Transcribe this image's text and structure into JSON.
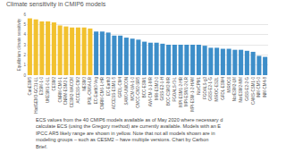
{
  "chart_data": {
    "type": "bar",
    "title": "Climate sensitivity in CMIP6 models",
    "y_label": "Equilibrium climate sensitivity",
    "categories": [
      "CanESM5",
      "HadGEM3-GC31-LL",
      "E3SM-1-0",
      "UKESM1-0-LL",
      "CESM2",
      "CNRM-CM6-1",
      "CNRM-ESM2-1",
      "CESM2-WACCM",
      "ACCESS-CM2",
      "NESM3",
      "IPSL-CM6A-LR",
      "EC-Earth3-Veg",
      "CNRM-CM6-1-HR",
      "EC-Earth3",
      "ACCESS-ESM1-5",
      "GFDL-CM4",
      "SAM0-UNICON",
      "MCM-UA-1-0",
      "CMCC-CM2-SR5",
      "BCC-ESM1",
      "AWI-CM-1-1-MR",
      "MRI-ESM2-0",
      "GISS-E2-1-H",
      "BCC-CSM2-MR",
      "FGOALS-f3-L",
      "MPI-ESM1-2-HR",
      "MPI-ESM1-2-LR",
      "MPI-ESM-1-2-HAM",
      "NorCPM1",
      "FGOALS-g3",
      "GISS-E2-1-G",
      "MIROC-ES2L",
      "GFDL-ESM4",
      "MIROC6",
      "NorESM2-LM",
      "NorESM2-MM",
      "GISS-E2-2-G",
      "CAMS-CSM1-0",
      "INM-CM5-0",
      "INM-CM4-8"
    ],
    "values": [
      5.6,
      5.5,
      5.3,
      5.3,
      5.2,
      4.9,
      4.8,
      4.7,
      4.7,
      4.7,
      4.6,
      4.3,
      4.3,
      4.2,
      3.9,
      3.9,
      3.7,
      3.6,
      3.5,
      3.3,
      3.2,
      3.2,
      3.1,
      3.0,
      3.0,
      3.0,
      3.0,
      3.0,
      3.0,
      2.9,
      2.7,
      2.7,
      2.6,
      2.6,
      2.5,
      2.5,
      2.4,
      2.3,
      1.9,
      1.8
    ],
    "colors": [
      "#f2c12e",
      "#f2c12e",
      "#f2c12e",
      "#f2c12e",
      "#f2c12e",
      "#f2c12e",
      "#f2c12e",
      "#f2c12e",
      "#f2c12e",
      "#f2c12e",
      "#f2c12e",
      "#3d8ec9",
      "#3d8ec9",
      "#3d8ec9",
      "#3d8ec9",
      "#3d8ec9",
      "#3d8ec9",
      "#3d8ec9",
      "#3d8ec9",
      "#3d8ec9",
      "#3d8ec9",
      "#3d8ec9",
      "#3d8ec9",
      "#3d8ec9",
      "#3d8ec9",
      "#3d8ec9",
      "#3d8ec9",
      "#3d8ec9",
      "#3d8ec9",
      "#3d8ec9",
      "#3d8ec9",
      "#3d8ec9",
      "#3d8ec9",
      "#3d8ec9",
      "#3d8ec9",
      "#3d8ec9",
      "#3d8ec9",
      "#3d8ec9",
      "#3d8ec9",
      "#3d8ec9"
    ],
    "ylim": [
      0,
      6
    ],
    "yticks": [
      0,
      1,
      2,
      3,
      4,
      5,
      6
    ],
    "grid": true
  },
  "caption": [
    "ECS values from the 40 CMIP6 models available as of May 2020 where necessary d",
    "calculate ECS (using the Gregory method) are currently available. Models with an E",
    "IPCC AR5 likely range are shown in yellow. Note that not all models shown are in",
    "modeling groups – such as CESM2 – have multiple versions. Chart by Carbon",
    "Brief."
  ]
}
